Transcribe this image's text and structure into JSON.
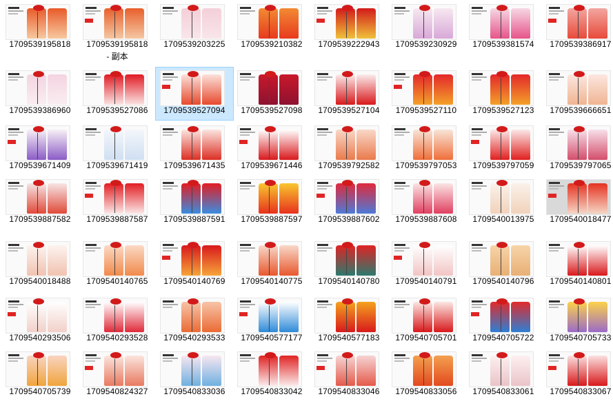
{
  "files": [
    {
      "name": "1709539195818",
      "top": "#e85b2a",
      "bottom": "#f7c9a0"
    },
    {
      "name": "1709539195818",
      "top": "#e8602c",
      "bottom": "#f5c7a3",
      "extra": "- 副本"
    },
    {
      "name": "1709539203225",
      "top": "#f4cfd8",
      "bottom": "#f8e6ea"
    },
    {
      "name": "1709539210382",
      "top": "#f28a33",
      "bottom": "#e83a1e"
    },
    {
      "name": "1709539222943",
      "top": "#d21a1a",
      "bottom": "#f0c23a"
    },
    {
      "name": "1709539230929",
      "top": "#f7e8f0",
      "bottom": "#d8a8d8"
    },
    {
      "name": "1709539381574",
      "top": "#f6d7e3",
      "bottom": "#e6548a"
    },
    {
      "name": "1709539386917",
      "top": "#f2a6a0",
      "bottom": "#e84a3a"
    },
    {
      "name": "1709539386960",
      "top": "#f4d4e0",
      "bottom": "#f9eef2"
    },
    {
      "name": "1709539527086",
      "top": "#e01b24",
      "bottom": "#fbe3e3"
    },
    {
      "name": "1709539527094",
      "top": "#fbe0da",
      "bottom": "#e74a2e",
      "selected": true
    },
    {
      "name": "1709539527098",
      "top": "#c9182b",
      "bottom": "#8e1230"
    },
    {
      "name": "1709539527104",
      "top": "#fbecec",
      "bottom": "#d8191c"
    },
    {
      "name": "1709539527110",
      "top": "#e3282a",
      "bottom": "#f4a12a"
    },
    {
      "name": "1709539527123",
      "top": "#e3282a",
      "bottom": "#f4a12a"
    },
    {
      "name": "1709539666651",
      "top": "#fbe7e0",
      "bottom": "#f0b492"
    },
    {
      "name": "1709539671409",
      "top": "#f7f0f6",
      "bottom": "#8b5cc6"
    },
    {
      "name": "1709539671419",
      "top": "#f4f6fb",
      "bottom": "#cfdff2"
    },
    {
      "name": "1709539671435",
      "top": "#fbe5e0",
      "bottom": "#dc2f24"
    },
    {
      "name": "1709539671446",
      "top": "#ffffff",
      "bottom": "#d8191c"
    },
    {
      "name": "1709539792582",
      "top": "#f9d8c8",
      "bottom": "#ea7a4c"
    },
    {
      "name": "1709539797053",
      "top": "#f8e4d8",
      "bottom": "#ef6f3a"
    },
    {
      "name": "1709539797059",
      "top": "#fbe8e8",
      "bottom": "#e0201f"
    },
    {
      "name": "1709539797065",
      "top": "#f7e0ea",
      "bottom": "#d44d6b"
    },
    {
      "name": "1709539887582",
      "top": "#f6e4e4",
      "bottom": "#e04a3a"
    },
    {
      "name": "1709539887587",
      "top": "#e21d22",
      "bottom": "#fbe6e6"
    },
    {
      "name": "1709539887591",
      "top": "#e21d22",
      "bottom": "#3a8de0"
    },
    {
      "name": "1709539887597",
      "top": "#f9c62e",
      "bottom": "#e7311d"
    },
    {
      "name": "1709539887602",
      "top": "#e02a3c",
      "bottom": "#4c7ad8"
    },
    {
      "name": "1709539887608",
      "top": "#fbe4e4",
      "bottom": "#e04060"
    },
    {
      "name": "1709540013975",
      "top": "#faf2ea",
      "bottom": "#f1d2bb"
    },
    {
      "name": "1709540018477",
      "top": "#e53322",
      "bottom": "#f6d5c4",
      "grey": true
    },
    {
      "name": "1709540018488",
      "top": "#fdf3ef",
      "bottom": "#f0c2b0"
    },
    {
      "name": "1709540140765",
      "top": "#fbd9c4",
      "bottom": "#f18a4b"
    },
    {
      "name": "1709540140769",
      "top": "#d8191c",
      "bottom": "#f6a53a"
    },
    {
      "name": "1709540140775",
      "top": "#f8d7c8",
      "bottom": "#e8582e"
    },
    {
      "name": "1709540140780",
      "top": "#e02424",
      "bottom": "#2c7a6e"
    },
    {
      "name": "1709540140791",
      "top": "#ffffff",
      "bottom": "#f2c4c4"
    },
    {
      "name": "1709540140796",
      "top": "#f7d4a8",
      "bottom": "#e8b076"
    },
    {
      "name": "1709540140801",
      "top": "#ffffff",
      "bottom": "#d8191c"
    },
    {
      "name": "1709540293506",
      "top": "#ffffff",
      "bottom": "#f1d0c8"
    },
    {
      "name": "1709540293528",
      "top": "#ffffff",
      "bottom": "#e02a3a"
    },
    {
      "name": "1709540293533",
      "top": "#f7c4a8",
      "bottom": "#ea6b34"
    },
    {
      "name": "1709540577177",
      "top": "#ffffff",
      "bottom": "#2e8ad8"
    },
    {
      "name": "1709540577183",
      "top": "#f4a21e",
      "bottom": "#d8191c"
    },
    {
      "name": "1709540705701",
      "top": "#fbe6e2",
      "bottom": "#d8191c"
    },
    {
      "name": "1709540705722",
      "top": "#e02b2b",
      "bottom": "#2e7fd4"
    },
    {
      "name": "1709540705733",
      "top": "#fcd24a",
      "bottom": "#9a6ac8"
    },
    {
      "name": "1709540705739",
      "top": "#f9d4c0",
      "bottom": "#f0a43c"
    },
    {
      "name": "1709540824327",
      "top": "#fbe4de",
      "bottom": "#e87a60"
    },
    {
      "name": "1709540833036",
      "top": "#f7e6f0",
      "bottom": "#6fb0e0"
    },
    {
      "name": "1709540833042",
      "top": "#e02424",
      "bottom": "#fbeaea"
    },
    {
      "name": "1709540833046",
      "top": "#f6d4d4",
      "bottom": "#e45a4a"
    },
    {
      "name": "1709540833056",
      "top": "#f2a050",
      "bottom": "#e34a1e"
    },
    {
      "name": "1709540833061",
      "top": "#fdf0f0",
      "bottom": "#eac4c8"
    },
    {
      "name": "1709540833067",
      "top": "#fbe0e0",
      "bottom": "#d8191c"
    }
  ]
}
